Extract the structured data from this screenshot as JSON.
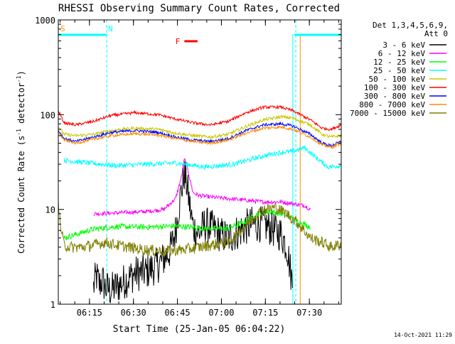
{
  "chart_data": {
    "type": "line",
    "title": "RHESSI Observing Summary Count Rates, Corrected",
    "xlabel": "Start Time (25-Jan-05 06:04:22)",
    "ylabel": "Corrected Count Rate (s⁻¹ detector⁻¹)",
    "ylabel_main": "Corrected Count Rate (s",
    "ylabel_sup1": "-1",
    "ylabel_mid": " detector",
    "ylabel_sup2": "-1",
    "ylabel_end": ")",
    "y_scale": "log",
    "ylim": [
      1,
      1000
    ],
    "xlim_minutes": [
      0,
      96.5
    ],
    "x_ticks": [
      {
        "label": "06:15",
        "minute": 10.63
      },
      {
        "label": "06:30",
        "minute": 25.63
      },
      {
        "label": "06:45",
        "minute": 40.63
      },
      {
        "label": "07:00",
        "minute": 55.63
      },
      {
        "label": "07:15",
        "minute": 70.63
      },
      {
        "label": "07:30",
        "minute": 85.63
      }
    ],
    "y_ticks": [
      {
        "label": "1",
        "value": 1
      },
      {
        "label": "10",
        "value": 10
      },
      {
        "label": "100",
        "value": 100
      },
      {
        "label": "1000",
        "value": 1000
      }
    ],
    "legend": {
      "placement": "right",
      "header1": "Det 1,3,4,5,6,9,",
      "header2": "Att 0",
      "entries": [
        {
          "label": "3 - 6 keV",
          "color": "#000000"
        },
        {
          "label": "6 - 12 keV",
          "color": "#ff00ff"
        },
        {
          "label": "12 - 25 keV",
          "color": "#00ff00"
        },
        {
          "label": "25 - 50 keV",
          "color": "#00ffff"
        },
        {
          "label": "50 - 100 keV",
          "color": "#c8c800"
        },
        {
          "label": "100 - 300 keV",
          "color": "#ff0000"
        },
        {
          "label": "300 - 800 keV",
          "color": "#0000ff"
        },
        {
          "label": "800 - 7000 keV",
          "color": "#ff8c00"
        },
        {
          "label": "7000 - 15000 keV",
          "color": "#7f7f00"
        }
      ]
    },
    "flags": [
      {
        "label": "S",
        "color": "#ff8c00",
        "start_min": 0,
        "end_min": 1
      },
      {
        "label": "N",
        "color": "#00ffff",
        "start_min": 0,
        "end_min": 16.5
      },
      {
        "label": "F",
        "color": "#ff0000",
        "start_min": 43,
        "end_min": 47.5
      },
      {
        "label": "",
        "color": "#00ffff",
        "start_min": 80.5,
        "end_min": 96.5
      }
    ],
    "dashed_vlines_minutes": [
      0,
      16.5,
      81,
      96.5
    ],
    "solid_vlines": [
      {
        "minute": 80,
        "color": "#00ffff"
      },
      {
        "minute": 82.5,
        "color": "#ff8c00"
      }
    ],
    "series": [
      {
        "name": "3 - 6 keV",
        "color": "#000000",
        "noise": 0.45,
        "x": [
          12,
          13,
          14,
          15,
          16,
          18,
          22,
          26,
          30,
          34,
          36,
          38,
          39,
          40,
          41,
          42,
          43,
          44,
          45,
          46,
          48,
          50,
          52,
          55,
          58,
          60,
          62,
          64,
          66,
          68,
          70,
          72,
          74,
          76,
          78,
          79,
          80
        ],
        "y": [
          1.5,
          2,
          1.6,
          1.8,
          1.5,
          1.4,
          1.7,
          2.1,
          2.2,
          2.6,
          3,
          3.6,
          4.5,
          6,
          10,
          16,
          24,
          17,
          10,
          6.5,
          5.5,
          7,
          6.5,
          5.5,
          5,
          5.5,
          6,
          6.5,
          7,
          7,
          7,
          6.5,
          6,
          5.5,
          4,
          2.5,
          1.5
        ]
      },
      {
        "name": "6 - 12 keV",
        "color": "#ff00ff",
        "noise": 0.05,
        "x": [
          12,
          20,
          30,
          36,
          40,
          42,
          43,
          44,
          45,
          46,
          48,
          52,
          58,
          64,
          70,
          76,
          80,
          84,
          86
        ],
        "y": [
          9,
          9.2,
          9.5,
          10,
          13,
          22,
          34,
          28,
          20,
          15,
          14,
          13.5,
          13,
          12.5,
          12,
          12,
          11.5,
          11,
          10
        ]
      },
      {
        "name": "12 - 25 keV",
        "color": "#00ff00",
        "noise": 0.07,
        "x": [
          2,
          12,
          20,
          30,
          40,
          50,
          58,
          64,
          68,
          72,
          76,
          80,
          86
        ],
        "y": [
          5,
          6.2,
          6.6,
          6.5,
          6.7,
          6.3,
          6.3,
          7.5,
          9,
          9.5,
          9,
          8,
          6.5
        ]
      },
      {
        "name": "25 - 50 keV",
        "color": "#00ffff",
        "noise": 0.06,
        "x": [
          2,
          10,
          20,
          30,
          40,
          50,
          60,
          66,
          72,
          76,
          80,
          84,
          88,
          92,
          96.5
        ],
        "y": [
          33,
          31,
          29,
          30,
          31,
          28,
          30,
          34,
          38,
          40,
          41,
          45,
          35,
          28,
          29
        ]
      },
      {
        "name": "50 - 100 keV",
        "color": "#c8c800",
        "noise": 0.04,
        "x": [
          0,
          2,
          6,
          12,
          18,
          26,
          34,
          40,
          46,
          52,
          58,
          64,
          70,
          76,
          80,
          86,
          90,
          93,
          96.5
        ],
        "y": [
          75,
          62,
          60,
          62,
          68,
          72,
          70,
          64,
          60,
          58,
          62,
          75,
          88,
          95,
          92,
          78,
          62,
          58,
          60
        ]
      },
      {
        "name": "100 - 300 keV",
        "color": "#ff0000",
        "noise": 0.035,
        "x": [
          0,
          2,
          6,
          12,
          18,
          26,
          34,
          40,
          46,
          52,
          58,
          64,
          70,
          76,
          80,
          86,
          90,
          93,
          96.5
        ],
        "y": [
          110,
          82,
          78,
          85,
          98,
          105,
          100,
          90,
          82,
          78,
          85,
          105,
          120,
          120,
          110,
          88,
          72,
          70,
          78
        ]
      },
      {
        "name": "300 - 800 keV",
        "color": "#0000ff",
        "noise": 0.035,
        "x": [
          0,
          2,
          6,
          12,
          18,
          26,
          34,
          40,
          46,
          52,
          58,
          64,
          70,
          76,
          80,
          86,
          90,
          93,
          96.5
        ],
        "y": [
          68,
          56,
          52,
          58,
          65,
          68,
          65,
          58,
          54,
          52,
          56,
          68,
          78,
          80,
          76,
          62,
          50,
          47,
          52
        ]
      },
      {
        "name": "800 - 7000 keV",
        "color": "#ff8c00",
        "noise": 0.035,
        "x": [
          0,
          2,
          6,
          12,
          18,
          26,
          34,
          40,
          46,
          52,
          58,
          64,
          70,
          76,
          80,
          86,
          90,
          93,
          96.5
        ],
        "y": [
          65,
          54,
          50,
          55,
          60,
          63,
          61,
          56,
          52,
          50,
          54,
          64,
          72,
          74,
          70,
          58,
          48,
          45,
          50
        ]
      },
      {
        "name": "7000 - 15000 keV",
        "color": "#7f7f00",
        "noise": 0.14,
        "x": [
          0,
          1,
          2,
          4,
          8,
          12,
          16,
          20,
          28,
          36,
          44,
          52,
          58,
          62,
          66,
          70,
          74,
          78,
          82,
          86,
          90,
          93,
          96.5
        ],
        "y": [
          11,
          6,
          4.2,
          4,
          4,
          4.2,
          4.5,
          4.2,
          3.8,
          3.6,
          3.8,
          4.2,
          4.5,
          6,
          8,
          10,
          10.5,
          9,
          7,
          5,
          4.5,
          4,
          4.3
        ]
      }
    ]
  },
  "footer": {
    "timestamp": "14-Oct-2021 11:29"
  }
}
